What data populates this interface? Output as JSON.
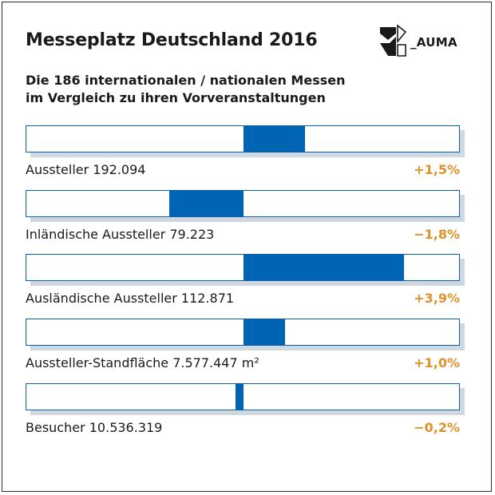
{
  "header": {
    "title": "Messeplatz Deutschland 2016",
    "subtitle_line1": "Die 186 internationalen / nationalen Messen",
    "subtitle_line2": "im Vergleich zu ihren Vorveranstaltungen",
    "logo_text": "_AUMA"
  },
  "colors": {
    "bar": "#0064b4",
    "change_text": "#e0922a",
    "track_border": "#0b5ea8",
    "shadow": "#cfd8e1"
  },
  "chart_data": {
    "type": "bar",
    "orientation": "horizontal-diverging",
    "baseline": 0,
    "xlim": [
      -5,
      5
    ],
    "grid": false,
    "legend": "none",
    "series": [
      {
        "label": "Aussteller 192.094",
        "change_label": "+1,5%",
        "value": 1.5
      },
      {
        "label": "Inländische Aussteller 79.223",
        "change_label": "−1,8%",
        "value": -1.8
      },
      {
        "label": "Ausländische Aussteller 112.871",
        "change_label": "+3,9%",
        "value": 3.9
      },
      {
        "label": "Aussteller-Standfläche 7.577.447 m²",
        "change_label": "+1,0%",
        "value": 1.0
      },
      {
        "label": "Besucher 10.536.319",
        "change_label": "−0,2%",
        "value": -0.2
      }
    ]
  }
}
